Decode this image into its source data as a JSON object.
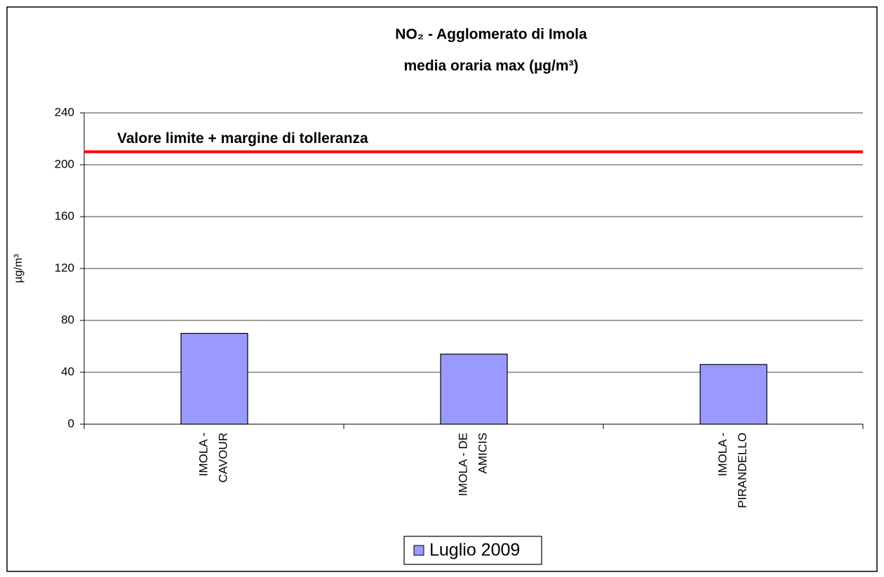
{
  "chart_data": {
    "type": "bar",
    "title": [
      "NO₂ - Agglomerato di Imola",
      "media oraria max  (µg/m³)"
    ],
    "y_label": "µg/m³",
    "categories": [
      [
        "IMOLA -",
        "CAVOUR"
      ],
      [
        "IMOLA - DE",
        "AMICIS"
      ],
      [
        "IMOLA -",
        "PIRANDELLO"
      ]
    ],
    "series": [
      {
        "name": "Luglio 2009",
        "color": "#9999ff",
        "values": [
          70,
          54,
          46
        ]
      }
    ],
    "ylim": [
      0,
      240
    ],
    "yticks": [
      0,
      40,
      80,
      120,
      160,
      200,
      240
    ],
    "grid": true,
    "reference_line": {
      "value": 210,
      "label": "Valore limite + margine di tolleranza",
      "color": "#ff0000"
    },
    "legend": "bottom"
  }
}
